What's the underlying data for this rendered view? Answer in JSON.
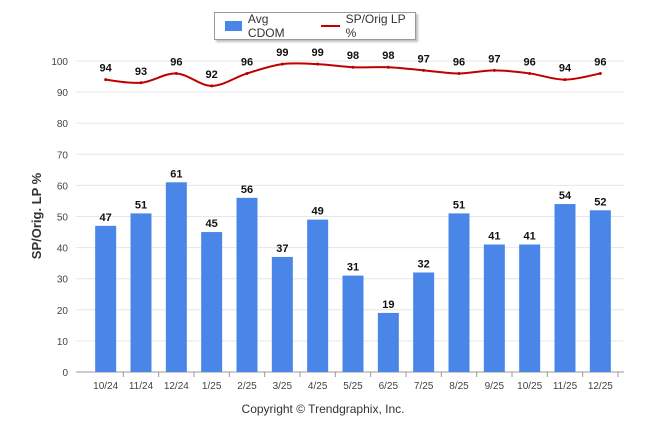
{
  "chart_data": {
    "type": "bar",
    "categories": [
      "10/24",
      "11/24",
      "12/24",
      "1/25",
      "2/25",
      "3/25",
      "4/25",
      "5/25",
      "6/25",
      "7/25",
      "8/25",
      "9/25",
      "10/25",
      "11/25",
      "12/25"
    ],
    "series": [
      {
        "name": "Avg CDOM",
        "type": "bar",
        "color": "#4a86e8",
        "values": [
          47,
          51,
          61,
          45,
          56,
          37,
          49,
          31,
          19,
          32,
          51,
          41,
          41,
          54,
          52
        ]
      },
      {
        "name": "SP/Orig LP %",
        "type": "line",
        "color": "#c00000",
        "values": [
          94,
          93,
          96,
          92,
          96,
          99,
          99,
          98,
          98,
          97,
          96,
          97,
          96,
          94,
          96
        ]
      }
    ],
    "ylabel": "SP/Orig. LP %",
    "ylim": [
      0,
      100
    ],
    "yticks": [
      0,
      10,
      20,
      30,
      40,
      50,
      60,
      70,
      80,
      90,
      100
    ],
    "grid": true,
    "legend": "top-center"
  },
  "legend": {
    "bar_label": "Avg CDOM",
    "line_label": "SP/Orig LP %"
  },
  "footer": "Copyright © Trendgraphix, Inc."
}
